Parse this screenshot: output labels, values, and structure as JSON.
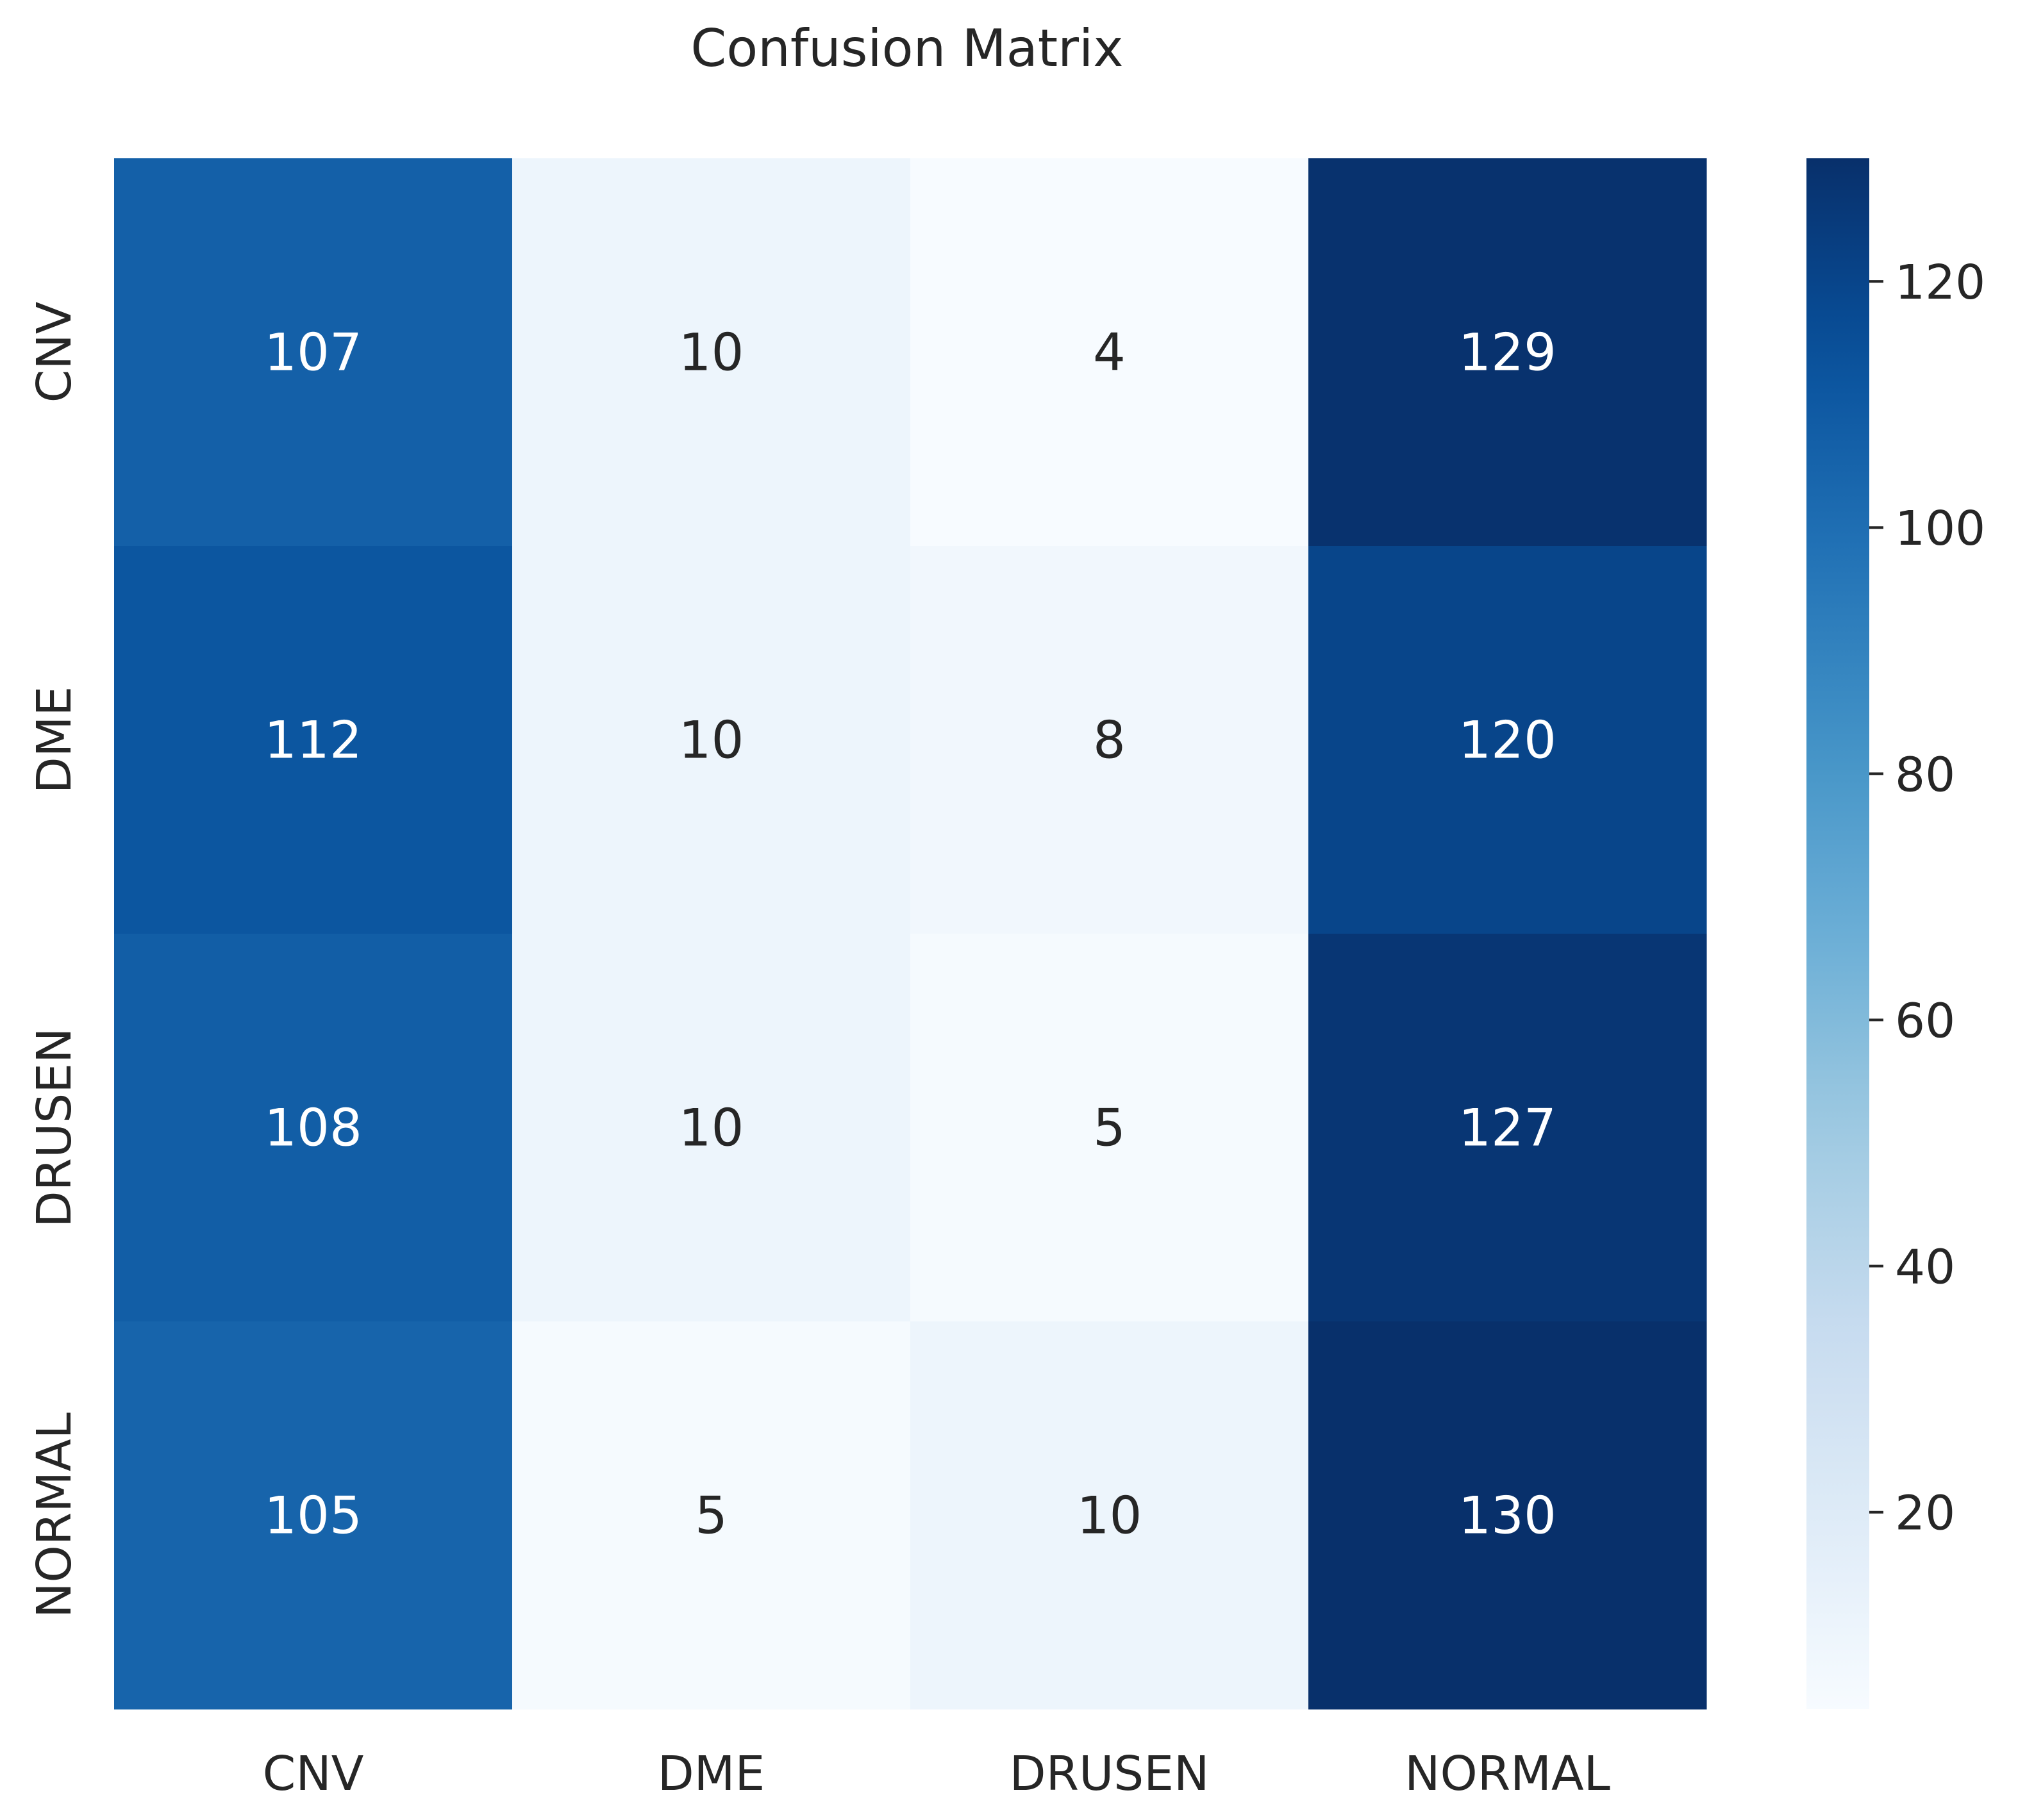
{
  "chart_data": {
    "type": "heatmap",
    "title": "Confusion Matrix",
    "xlabel": "",
    "ylabel": "",
    "x_categories": [
      "CNV",
      "DME",
      "DRUSEN",
      "NORMAL"
    ],
    "y_categories": [
      "CNV",
      "DME",
      "DRUSEN",
      "NORMAL"
    ],
    "values": [
      [
        107,
        10,
        4,
        129
      ],
      [
        112,
        10,
        8,
        120
      ],
      [
        108,
        10,
        5,
        127
      ],
      [
        105,
        5,
        10,
        130
      ]
    ],
    "colorbar": {
      "min": 4,
      "max": 130,
      "ticks": [
        20,
        40,
        60,
        80,
        100,
        120
      ],
      "colormap": "Blues"
    },
    "colors": {
      "light_end": "#f7fbff",
      "dark_end": "#08306b",
      "text_dark": "#262626",
      "text_light": "#ffffff"
    }
  }
}
